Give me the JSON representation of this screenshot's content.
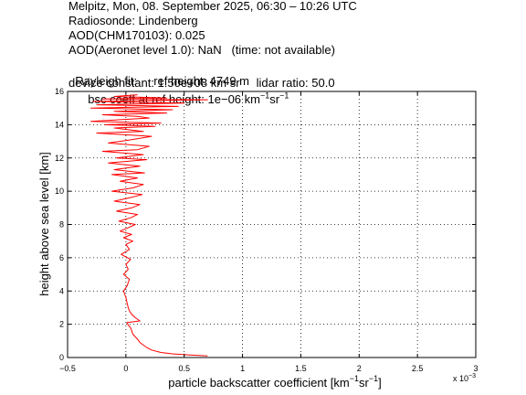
{
  "header": {
    "line1": "Melpitz, Mon, 08. September 2025, 06:30 – 10:26 UTC",
    "line2": "Radiosonde: Lindenberg",
    "line3": "AOD(CHM170103): 0.025",
    "line4": "AOD(Aeronet level 1.0): NaN   (time: not available)",
    "line5_a": "Rayleigh fit:     ref height: 4749 m",
    "line5_b": "bsc coeff at ref height: 1e−06 km",
    "line5_b_sup1": "−1",
    "line5_b_mid": "sr",
    "line5_b_sup2": "−1",
    "line6": "device constant: 1.50e+08 km sr     lidar ratio: 50.0"
  },
  "chart_data": {
    "type": "line",
    "xlabel_main": "particle backscatter coefficient [km",
    "xlabel_sup1": "−1",
    "xlabel_mid": "sr",
    "xlabel_sup2": "−1",
    "xlabel_end": "]",
    "ylabel": "height above sea level [km]",
    "x_exponent_label": "x 10",
    "x_exponent_sup": "−3",
    "xlim": [
      -0.5,
      3
    ],
    "ylim": [
      0,
      16
    ],
    "xticks": [
      -0.5,
      0,
      0.5,
      1,
      1.5,
      2,
      2.5,
      3
    ],
    "xtick_labels": [
      "−0.5",
      "0",
      "0.5",
      "1",
      "1.5",
      "2",
      "2.5",
      "3"
    ],
    "yticks": [
      0,
      2,
      4,
      6,
      8,
      10,
      12,
      14,
      16
    ],
    "ytick_labels": [
      "0",
      "2",
      "4",
      "6",
      "8",
      "10",
      "12",
      "14",
      "16"
    ],
    "grid": true,
    "line_color": "#ff0000",
    "series": [
      {
        "x": [
          0.7,
          0.55,
          0.4,
          0.3,
          0.22,
          0.18,
          0.15,
          0.12,
          0.1,
          0.06,
          0.04,
          0.02,
          0.01,
          0.12,
          0.08,
          0.05,
          0.03,
          0.02,
          0.01,
          0.0,
          -0.02,
          0.01,
          0.03,
          -0.02,
          0.02,
          0.0,
          0.04,
          -0.04,
          0.03,
          0.0,
          0.06,
          -0.02,
          0.05,
          -0.05,
          0.02,
          0.08,
          -0.06,
          0.04,
          0.1,
          -0.08,
          0.05,
          0.12,
          -0.1,
          0.03,
          0.14,
          -0.12,
          0.06,
          0.15,
          -0.05,
          0.1,
          -0.12,
          0.16,
          -0.1,
          0.12,
          -0.15,
          0.18,
          -0.08,
          0.15,
          -0.2,
          0.1,
          0.2,
          -0.15,
          0.05,
          0.22,
          -0.25,
          0.15,
          -0.1,
          0.25,
          -0.18,
          0.3,
          -0.3,
          0.2,
          0.1,
          -0.2,
          0.35,
          -0.1,
          0.4,
          -0.3,
          0.45,
          -0.25,
          0.5,
          -0.28,
          0.15,
          0.7,
          -0.2,
          0.35,
          -0.1,
          0.1
        ],
        "y": [
          0.1,
          0.15,
          0.22,
          0.3,
          0.45,
          0.6,
          0.75,
          0.9,
          1.1,
          1.4,
          1.8,
          1.95,
          2.1,
          2.2,
          2.4,
          2.6,
          2.8,
          3.0,
          3.3,
          3.6,
          4.0,
          4.3,
          4.7,
          5.0,
          5.3,
          5.6,
          5.9,
          6.2,
          6.5,
          6.8,
          7.0,
          7.2,
          7.4,
          7.6,
          7.8,
          8.0,
          8.2,
          8.4,
          8.6,
          8.8,
          9.0,
          9.2,
          9.4,
          9.6,
          9.8,
          10.0,
          10.2,
          10.4,
          10.6,
          10.8,
          11.0,
          11.1,
          11.3,
          11.5,
          11.7,
          11.9,
          12.0,
          12.2,
          12.4,
          12.5,
          12.7,
          12.9,
          13.1,
          13.3,
          13.5,
          13.6,
          13.8,
          13.9,
          14.0,
          14.1,
          14.2,
          14.4,
          14.5,
          14.6,
          14.7,
          14.8,
          14.9,
          15.0,
          15.1,
          15.2,
          15.3,
          15.4,
          15.45,
          15.5,
          15.55,
          15.6,
          15.7,
          15.8
        ]
      }
    ]
  }
}
